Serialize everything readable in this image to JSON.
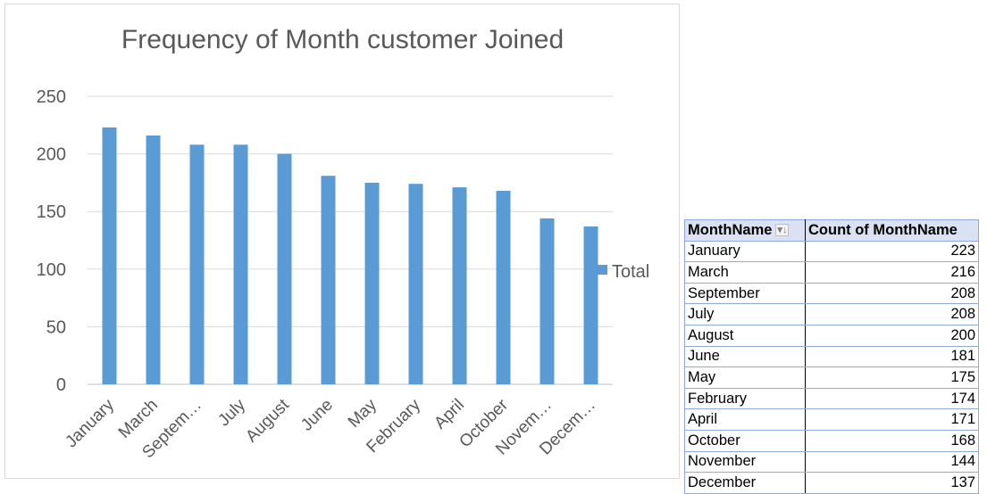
{
  "chart_data": {
    "type": "bar",
    "title": "Frequency of Month customer Joined",
    "categories": [
      "January",
      "March",
      "September",
      "July",
      "August",
      "June",
      "May",
      "February",
      "April",
      "October",
      "November",
      "December"
    ],
    "tick_labels": [
      "January",
      "March",
      "Septem…",
      "July",
      "August",
      "June",
      "May",
      "February",
      "April",
      "October",
      "Novem…",
      "Decem…"
    ],
    "series": [
      {
        "name": "Total",
        "values": [
          223,
          216,
          208,
          208,
          200,
          181,
          175,
          174,
          171,
          168,
          144,
          137
        ],
        "color": "#5b9bd5"
      }
    ],
    "ylim": [
      0,
      250
    ],
    "yticks": [
      0,
      50,
      100,
      150,
      200,
      250
    ],
    "grid": true,
    "legend": "right",
    "xlabel": "",
    "ylabel": ""
  },
  "pivot_table": {
    "headers": [
      "MonthName",
      "Count of MonthName"
    ],
    "sort_icon": "filter-sort-icon",
    "rows": [
      [
        "January",
        "223"
      ],
      [
        "March",
        "216"
      ],
      [
        "September",
        "208"
      ],
      [
        "July",
        "208"
      ],
      [
        "August",
        "200"
      ],
      [
        "June",
        "181"
      ],
      [
        "May",
        "175"
      ],
      [
        "February",
        "174"
      ],
      [
        "April",
        "171"
      ],
      [
        "October",
        "168"
      ],
      [
        "November",
        "144"
      ],
      [
        "December",
        "137"
      ]
    ]
  }
}
